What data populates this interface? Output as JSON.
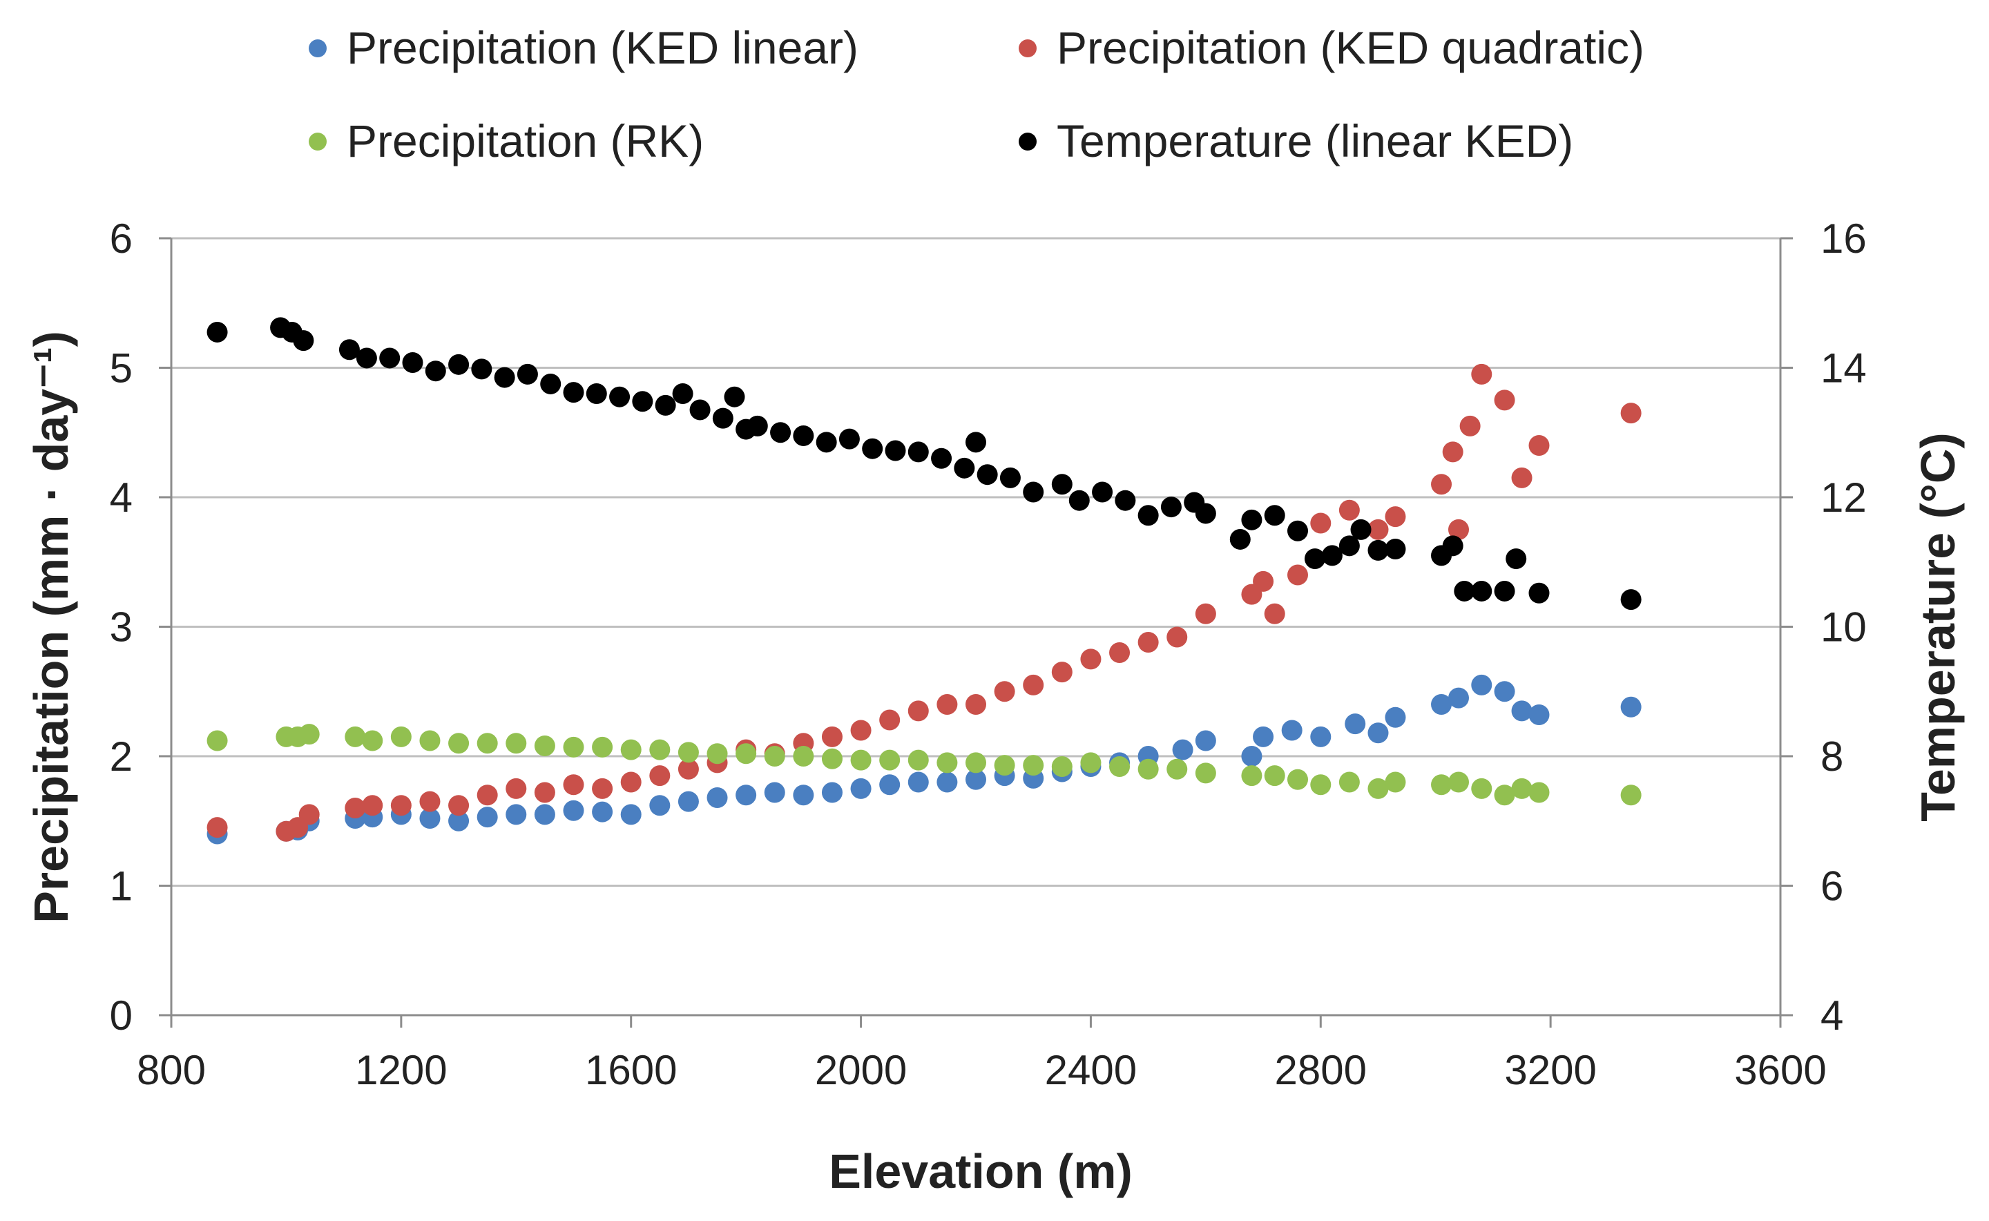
{
  "chart_data": {
    "type": "scatter",
    "title": "",
    "xlabel": "Elevation (m)",
    "ylabel": "Precipitation (mm · day⁻¹)",
    "y2label": "Temperature (°C)",
    "xlim": [
      800,
      3600
    ],
    "ylim": [
      0,
      6
    ],
    "y2lim": [
      4,
      16
    ],
    "xticks": [
      "800",
      "1200",
      "1600",
      "2000",
      "2400",
      "2800",
      "3200",
      "3600"
    ],
    "yticks": [
      "0",
      "1",
      "2",
      "3",
      "4",
      "5",
      "6"
    ],
    "y2ticks": [
      "4",
      "6",
      "8",
      "10",
      "12",
      "14",
      "16"
    ],
    "grid": "horizontal",
    "legend_position": "top",
    "series": [
      {
        "name": "Precipitation (KED linear)",
        "axis": "left",
        "color": "#4a7fc1",
        "points": [
          [
            880,
            1.4
          ],
          [
            1000,
            1.42
          ],
          [
            1020,
            1.43
          ],
          [
            1040,
            1.5
          ],
          [
            1120,
            1.52
          ],
          [
            1150,
            1.53
          ],
          [
            1200,
            1.55
          ],
          [
            1250,
            1.52
          ],
          [
            1300,
            1.5
          ],
          [
            1350,
            1.53
          ],
          [
            1400,
            1.55
          ],
          [
            1450,
            1.55
          ],
          [
            1500,
            1.58
          ],
          [
            1550,
            1.57
          ],
          [
            1600,
            1.55
          ],
          [
            1650,
            1.62
          ],
          [
            1700,
            1.65
          ],
          [
            1750,
            1.68
          ],
          [
            1800,
            1.7
          ],
          [
            1850,
            1.72
          ],
          [
            1900,
            1.7
          ],
          [
            1950,
            1.72
          ],
          [
            2000,
            1.75
          ],
          [
            2050,
            1.78
          ],
          [
            2100,
            1.8
          ],
          [
            2150,
            1.8
          ],
          [
            2200,
            1.82
          ],
          [
            2250,
            1.85
          ],
          [
            2300,
            1.83
          ],
          [
            2350,
            1.88
          ],
          [
            2400,
            1.92
          ],
          [
            2450,
            1.95
          ],
          [
            2500,
            2.0
          ],
          [
            2560,
            2.05
          ],
          [
            2600,
            2.12
          ],
          [
            2680,
            2.0
          ],
          [
            2700,
            2.15
          ],
          [
            2750,
            2.2
          ],
          [
            2800,
            2.15
          ],
          [
            2860,
            2.25
          ],
          [
            2900,
            2.18
          ],
          [
            2930,
            2.3
          ],
          [
            3010,
            2.4
          ],
          [
            3040,
            2.45
          ],
          [
            3080,
            2.55
          ],
          [
            3120,
            2.5
          ],
          [
            3150,
            2.35
          ],
          [
            3180,
            2.32
          ],
          [
            3340,
            2.38
          ]
        ]
      },
      {
        "name": "Precipitation (KED quadratic)",
        "axis": "left",
        "color": "#c9504a",
        "points": [
          [
            880,
            1.45
          ],
          [
            1000,
            1.42
          ],
          [
            1020,
            1.45
          ],
          [
            1040,
            1.55
          ],
          [
            1120,
            1.6
          ],
          [
            1150,
            1.62
          ],
          [
            1200,
            1.62
          ],
          [
            1250,
            1.65
          ],
          [
            1300,
            1.62
          ],
          [
            1350,
            1.7
          ],
          [
            1400,
            1.75
          ],
          [
            1450,
            1.72
          ],
          [
            1500,
            1.78
          ],
          [
            1550,
            1.75
          ],
          [
            1600,
            1.8
          ],
          [
            1650,
            1.85
          ],
          [
            1700,
            1.9
          ],
          [
            1750,
            1.95
          ],
          [
            1800,
            2.05
          ],
          [
            1850,
            2.02
          ],
          [
            1900,
            2.1
          ],
          [
            1950,
            2.15
          ],
          [
            2000,
            2.2
          ],
          [
            2050,
            2.28
          ],
          [
            2100,
            2.35
          ],
          [
            2150,
            2.4
          ],
          [
            2200,
            2.4
          ],
          [
            2250,
            2.5
          ],
          [
            2300,
            2.55
          ],
          [
            2350,
            2.65
          ],
          [
            2400,
            2.75
          ],
          [
            2450,
            2.8
          ],
          [
            2500,
            2.88
          ],
          [
            2550,
            2.92
          ],
          [
            2600,
            3.1
          ],
          [
            2680,
            3.25
          ],
          [
            2700,
            3.35
          ],
          [
            2720,
            3.1
          ],
          [
            2760,
            3.4
          ],
          [
            2800,
            3.8
          ],
          [
            2850,
            3.9
          ],
          [
            2900,
            3.75
          ],
          [
            2930,
            3.85
          ],
          [
            3010,
            4.1
          ],
          [
            3030,
            4.35
          ],
          [
            3040,
            3.75
          ],
          [
            3060,
            4.55
          ],
          [
            3080,
            4.95
          ],
          [
            3120,
            4.75
          ],
          [
            3150,
            4.15
          ],
          [
            3180,
            4.4
          ],
          [
            3340,
            4.65
          ]
        ]
      },
      {
        "name": "Precipitation (RK)",
        "axis": "left",
        "color": "#92c050",
        "points": [
          [
            880,
            2.12
          ],
          [
            1000,
            2.15
          ],
          [
            1020,
            2.15
          ],
          [
            1040,
            2.17
          ],
          [
            1120,
            2.15
          ],
          [
            1150,
            2.12
          ],
          [
            1200,
            2.15
          ],
          [
            1250,
            2.12
          ],
          [
            1300,
            2.1
          ],
          [
            1350,
            2.1
          ],
          [
            1400,
            2.1
          ],
          [
            1450,
            2.08
          ],
          [
            1500,
            2.07
          ],
          [
            1550,
            2.07
          ],
          [
            1600,
            2.05
          ],
          [
            1650,
            2.05
          ],
          [
            1700,
            2.03
          ],
          [
            1750,
            2.02
          ],
          [
            1800,
            2.02
          ],
          [
            1850,
            2.0
          ],
          [
            1900,
            2.0
          ],
          [
            1950,
            1.98
          ],
          [
            2000,
            1.97
          ],
          [
            2050,
            1.97
          ],
          [
            2100,
            1.97
          ],
          [
            2150,
            1.95
          ],
          [
            2200,
            1.95
          ],
          [
            2250,
            1.93
          ],
          [
            2300,
            1.93
          ],
          [
            2350,
            1.92
          ],
          [
            2400,
            1.95
          ],
          [
            2450,
            1.92
          ],
          [
            2500,
            1.9
          ],
          [
            2550,
            1.9
          ],
          [
            2600,
            1.87
          ],
          [
            2680,
            1.85
          ],
          [
            2720,
            1.85
          ],
          [
            2760,
            1.82
          ],
          [
            2800,
            1.78
          ],
          [
            2850,
            1.8
          ],
          [
            2900,
            1.75
          ],
          [
            2930,
            1.8
          ],
          [
            3010,
            1.78
          ],
          [
            3040,
            1.8
          ],
          [
            3080,
            1.75
          ],
          [
            3120,
            1.7
          ],
          [
            3150,
            1.75
          ],
          [
            3180,
            1.72
          ],
          [
            3340,
            1.7
          ]
        ]
      },
      {
        "name": "Temperature (linear KED)",
        "axis": "right",
        "color": "#000000",
        "points": [
          [
            880,
            14.55
          ],
          [
            990,
            14.62
          ],
          [
            1010,
            14.55
          ],
          [
            1030,
            14.42
          ],
          [
            1110,
            14.28
          ],
          [
            1140,
            14.15
          ],
          [
            1180,
            14.15
          ],
          [
            1220,
            14.08
          ],
          [
            1260,
            13.95
          ],
          [
            1300,
            14.05
          ],
          [
            1340,
            13.98
          ],
          [
            1380,
            13.85
          ],
          [
            1420,
            13.9
          ],
          [
            1460,
            13.75
          ],
          [
            1500,
            13.62
          ],
          [
            1540,
            13.6
          ],
          [
            1580,
            13.55
          ],
          [
            1620,
            13.48
          ],
          [
            1660,
            13.42
          ],
          [
            1690,
            13.6
          ],
          [
            1720,
            13.35
          ],
          [
            1760,
            13.22
          ],
          [
            1780,
            13.55
          ],
          [
            1800,
            13.05
          ],
          [
            1820,
            13.1
          ],
          [
            1860,
            13.0
          ],
          [
            1900,
            12.95
          ],
          [
            1940,
            12.85
          ],
          [
            1980,
            12.9
          ],
          [
            2020,
            12.75
          ],
          [
            2060,
            12.72
          ],
          [
            2100,
            12.7
          ],
          [
            2140,
            12.6
          ],
          [
            2180,
            12.45
          ],
          [
            2200,
            12.85
          ],
          [
            2220,
            12.35
          ],
          [
            2260,
            12.3
          ],
          [
            2300,
            12.08
          ],
          [
            2350,
            12.2
          ],
          [
            2380,
            11.95
          ],
          [
            2420,
            12.08
          ],
          [
            2460,
            11.95
          ],
          [
            2500,
            11.72
          ],
          [
            2540,
            11.85
          ],
          [
            2580,
            11.92
          ],
          [
            2600,
            11.75
          ],
          [
            2660,
            11.35
          ],
          [
            2680,
            11.65
          ],
          [
            2720,
            11.72
          ],
          [
            2760,
            11.48
          ],
          [
            2790,
            11.05
          ],
          [
            2820,
            11.1
          ],
          [
            2850,
            11.25
          ],
          [
            2870,
            11.5
          ],
          [
            2900,
            11.18
          ],
          [
            2930,
            11.2
          ],
          [
            3010,
            11.1
          ],
          [
            3030,
            11.25
          ],
          [
            3050,
            10.55
          ],
          [
            3080,
            10.55
          ],
          [
            3120,
            10.55
          ],
          [
            3140,
            11.05
          ],
          [
            3180,
            10.52
          ],
          [
            3340,
            10.42
          ]
        ]
      }
    ]
  }
}
